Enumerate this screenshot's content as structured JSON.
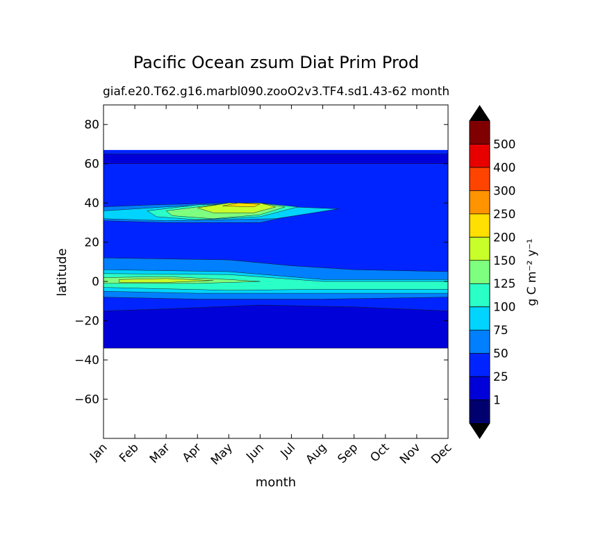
{
  "chart_data": {
    "type": "filled-contour",
    "title": "Pacific Ocean zsum Diat Prim Prod",
    "subtitle": "giaf.e20.T62.g16.marbl090.zooO2v3.TF4.sd1.43-62",
    "corner_label": "month",
    "xlabel": "month",
    "ylabel": "latitude",
    "x": [
      "Jan",
      "Feb",
      "Mar",
      "Apr",
      "May",
      "Jun",
      "Jul",
      "Aug",
      "Sep",
      "Oct",
      "Nov",
      "Dec"
    ],
    "ylim": [
      -80,
      90
    ],
    "yticks": [
      80,
      60,
      40,
      20,
      0,
      -20,
      -40,
      -60
    ],
    "ytick_labels": [
      "80",
      "60",
      "40",
      "20",
      "0",
      "−20",
      "−40",
      "−60"
    ],
    "data_lat_range": [
      -34,
      67
    ],
    "colorbar": {
      "label": "g C m⁻² y⁻¹",
      "extend": "both",
      "levels": [
        "1",
        "25",
        "50",
        "75",
        "100",
        "125",
        "150",
        "200",
        "250",
        "300",
        "400",
        "500"
      ],
      "colors": [
        "#00006e",
        "#0000d8",
        "#0024ff",
        "#0080ff",
        "#00d4ff",
        "#2affc8",
        "#7fff7f",
        "#c8ff2a",
        "#ffe000",
        "#ff9400",
        "#ff4400",
        "#e80000",
        "#800000"
      ],
      "under_color": "#000000",
      "over_color": "#000000"
    },
    "bands": [
      {
        "color_index": 2,
        "points": [
          [
            1,
            67
          ],
          [
            12,
            67
          ],
          [
            12,
            -34
          ],
          [
            1,
            -34
          ]
        ]
      },
      {
        "color_index": 1,
        "points": [
          [
            1,
            65
          ],
          [
            12,
            65
          ],
          [
            12,
            60
          ],
          [
            1,
            60
          ]
        ]
      },
      {
        "color_index": 1,
        "points": [
          [
            1,
            -15
          ],
          [
            3,
            -14
          ],
          [
            6,
            -12
          ],
          [
            9,
            -13
          ],
          [
            12,
            -15
          ],
          [
            12,
            -34
          ],
          [
            1,
            -34
          ]
        ]
      },
      {
        "color_index": 3,
        "points": [
          [
            1,
            38
          ],
          [
            2.5,
            39
          ],
          [
            5,
            40
          ],
          [
            7,
            38
          ],
          [
            8,
            37
          ],
          [
            6,
            30
          ],
          [
            3,
            30
          ],
          [
            1,
            31
          ]
        ]
      },
      {
        "color_index": 3,
        "points": [
          [
            1,
            12
          ],
          [
            5,
            11
          ],
          [
            7,
            8
          ],
          [
            9,
            6
          ],
          [
            12,
            5
          ],
          [
            12,
            -8
          ],
          [
            8,
            -9
          ],
          [
            4,
            -9
          ],
          [
            1,
            -8
          ]
        ]
      },
      {
        "color_index": 4,
        "points": [
          [
            1,
            36
          ],
          [
            3,
            38
          ],
          [
            5,
            39.5
          ],
          [
            7,
            38
          ],
          [
            8.5,
            37
          ],
          [
            6.5,
            32
          ],
          [
            3,
            31
          ],
          [
            1,
            32
          ]
        ]
      },
      {
        "color_index": 4,
        "points": [
          [
            1,
            6
          ],
          [
            5,
            5
          ],
          [
            8,
            1
          ],
          [
            12,
            1
          ],
          [
            12,
            -6
          ],
          [
            8,
            -6
          ],
          [
            4,
            -6
          ],
          [
            1,
            -5
          ]
        ]
      },
      {
        "color_index": 5,
        "points": [
          [
            2.4,
            36
          ],
          [
            4,
            39
          ],
          [
            6,
            40
          ],
          [
            7.2,
            38
          ],
          [
            6,
            33
          ],
          [
            4,
            31.5
          ],
          [
            2.7,
            33
          ]
        ]
      },
      {
        "color_index": 5,
        "points": [
          [
            1,
            4
          ],
          [
            5,
            3.5
          ],
          [
            8,
            0
          ],
          [
            12,
            0
          ],
          [
            12,
            -4
          ],
          [
            8,
            -4
          ],
          [
            5,
            -4.5
          ],
          [
            1,
            -3
          ]
        ]
      },
      {
        "color_index": 6,
        "points": [
          [
            3,
            36
          ],
          [
            4.5,
            39
          ],
          [
            6,
            40
          ],
          [
            6.8,
            38
          ],
          [
            6,
            34
          ],
          [
            4.5,
            32
          ],
          [
            3.2,
            33.5
          ]
        ]
      },
      {
        "color_index": 6,
        "points": [
          [
            1,
            2
          ],
          [
            3,
            2.5
          ],
          [
            5,
            1
          ],
          [
            6,
            0
          ],
          [
            4,
            -1
          ],
          [
            1,
            -1
          ]
        ]
      },
      {
        "color_index": 7,
        "points": [
          [
            4,
            37.5
          ],
          [
            5,
            40
          ],
          [
            6,
            40
          ],
          [
            6.5,
            38
          ],
          [
            5.8,
            35
          ],
          [
            4.5,
            35
          ]
        ]
      },
      {
        "color_index": 7,
        "points": [
          [
            1.5,
            1
          ],
          [
            3,
            1.5
          ],
          [
            4.5,
            0.5
          ],
          [
            3,
            -0.5
          ],
          [
            1.5,
            -0.5
          ]
        ]
      },
      {
        "color_index": 8,
        "points": [
          [
            4.8,
            38.5
          ],
          [
            5.3,
            40
          ],
          [
            6,
            39.5
          ],
          [
            5.8,
            38
          ]
        ]
      }
    ]
  }
}
